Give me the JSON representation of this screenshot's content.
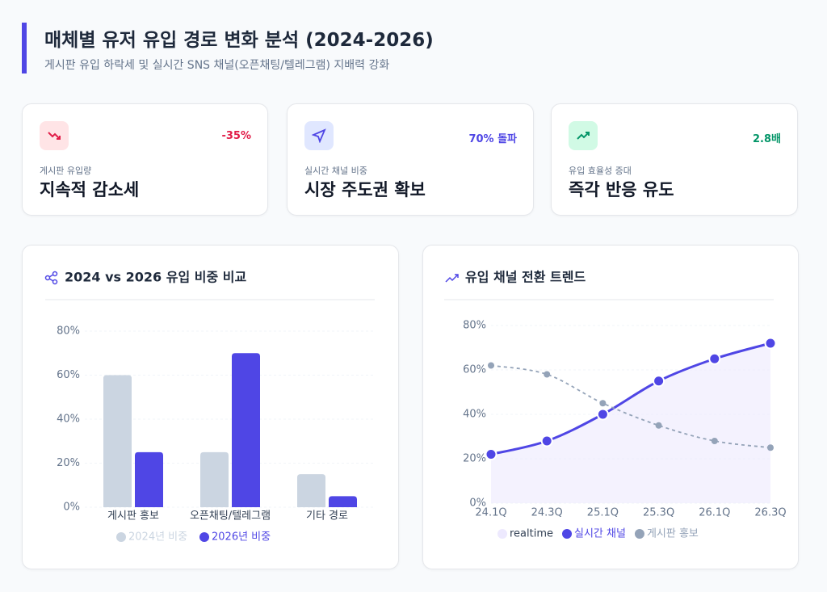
{
  "header": {
    "title": "매체별 유저 유입 경로 변화 분석 (2024-2026)",
    "subtitle": "게시판 유입 하락세 및 실시간 SNS 채널(오픈채팅/텔레그램) 지배력 강화"
  },
  "cards": [
    {
      "badge": "-35%",
      "label": "게시판 유입량",
      "value": "지속적 감소세"
    },
    {
      "badge": "70% 돌파",
      "label": "실시간 채널 비중",
      "value": "시장 주도권 확보"
    },
    {
      "badge": "2.8배",
      "label": "유입 효율성 증대",
      "value": "즉각 반응 유도"
    }
  ],
  "chart_data": [
    {
      "type": "bar",
      "title": "2024 vs 2026 유입 비중 비교",
      "categories": [
        "게시판 홍보",
        "오픈채팅/텔레그램",
        "기타 경로"
      ],
      "series": [
        {
          "name": "2024년 비중",
          "color": "#cbd5e1",
          "values": [
            60,
            25,
            15
          ]
        },
        {
          "name": "2026년 비중",
          "color": "#4f46e5",
          "values": [
            25,
            70,
            5
          ]
        }
      ],
      "ylim": [
        0,
        80
      ],
      "yticks": [
        {
          "value": 0,
          "label": "0%"
        },
        {
          "value": 20,
          "label": "20%"
        },
        {
          "value": 40,
          "label": "40%"
        },
        {
          "value": 60,
          "label": "60%"
        },
        {
          "value": 80,
          "label": "80%"
        }
      ],
      "grid": true
    },
    {
      "type": "line",
      "title": "유입 채널 전환 트렌드",
      "categories": [
        "24.1Q",
        "24.3Q",
        "25.1Q",
        "25.3Q",
        "26.1Q",
        "26.3Q"
      ],
      "series": [
        {
          "name": "realtime",
          "color": "#ede9fe",
          "values": [
            22,
            28,
            40,
            55,
            65,
            72
          ]
        },
        {
          "name": "실시간 채널",
          "color": "#4f46e5",
          "values": [
            22,
            28,
            40,
            55,
            65,
            72
          ]
        },
        {
          "name": "게시판 홍보",
          "color": "#94a3b8",
          "values": [
            62,
            58,
            45,
            35,
            28,
            25
          ]
        }
      ],
      "ylim": [
        0,
        80
      ],
      "yticks": [
        {
          "value": 0,
          "label": "0%"
        },
        {
          "value": 20,
          "label": "20%"
        },
        {
          "value": 40,
          "label": "40%"
        },
        {
          "value": 60,
          "label": "60%"
        },
        {
          "value": 80,
          "label": "80%"
        }
      ],
      "grid": true
    }
  ]
}
